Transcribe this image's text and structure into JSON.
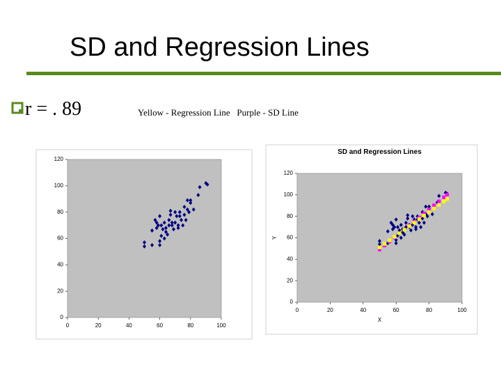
{
  "title": "SD and Regression Lines",
  "bullet": "r = . 89",
  "note": "Yellow - Regression Line   Purple - SD Line",
  "chart_data": [
    {
      "type": "scatter",
      "xlim": [
        0,
        100
      ],
      "xticks": [
        0,
        20,
        40,
        60,
        80,
        100
      ],
      "ylim": [
        0,
        120
      ],
      "yticks": [
        0,
        20,
        40,
        60,
        80,
        100,
        120
      ],
      "series": [
        {
          "color": "#000080",
          "marker": "diamond",
          "x": [
            50,
            50,
            55,
            55,
            58,
            58,
            59,
            60,
            60,
            60,
            61,
            61,
            62,
            63,
            64,
            64,
            65,
            66,
            66,
            67,
            67,
            68,
            68,
            69,
            70,
            70,
            71,
            72,
            72,
            73,
            73,
            74,
            75,
            76,
            76,
            77,
            78,
            78,
            79,
            80,
            80,
            82,
            85,
            86,
            90,
            91,
            57,
            63
          ],
          "values": [
            57,
            54,
            66,
            55,
            68,
            72,
            70,
            55,
            58,
            77,
            62,
            70,
            67,
            72,
            65,
            68,
            63,
            70,
            74,
            78,
            81,
            70,
            72,
            67,
            80,
            72,
            77,
            68,
            70,
            77,
            80,
            74,
            70,
            84,
            78,
            74,
            89,
            82,
            80,
            87,
            89,
            82,
            93,
            99,
            102,
            101,
            74,
            60
          ]
        }
      ]
    },
    {
      "type": "scatter",
      "title": "SD and Regression Lines",
      "xlabel": "X",
      "ylabel": "Y",
      "xlim": [
        0,
        100
      ],
      "xticks": [
        0,
        20,
        40,
        60,
        80,
        100
      ],
      "ylim": [
        0,
        120
      ],
      "yticks": [
        0,
        20,
        40,
        60,
        80,
        100,
        120
      ],
      "series": [
        {
          "color": "#000080",
          "marker": "diamond",
          "x": [
            50,
            50,
            55,
            55,
            58,
            58,
            59,
            60,
            60,
            60,
            61,
            61,
            62,
            63,
            64,
            64,
            65,
            66,
            66,
            67,
            67,
            68,
            68,
            69,
            70,
            70,
            71,
            72,
            72,
            73,
            73,
            74,
            75,
            76,
            76,
            77,
            78,
            78,
            79,
            80,
            80,
            82,
            85,
            86,
            90,
            91,
            57,
            63
          ],
          "values": [
            57,
            54,
            66,
            55,
            68,
            72,
            70,
            55,
            58,
            77,
            62,
            70,
            67,
            72,
            65,
            68,
            63,
            70,
            74,
            78,
            81,
            70,
            72,
            67,
            80,
            72,
            77,
            68,
            70,
            77,
            80,
            74,
            70,
            84,
            78,
            74,
            89,
            82,
            80,
            87,
            89,
            82,
            93,
            99,
            102,
            101,
            74,
            60
          ]
        },
        {
          "color": "#ff00ff",
          "marker": "square",
          "x": [
            50,
            53,
            56,
            59,
            62,
            65,
            68,
            71,
            74,
            77,
            80,
            83,
            86,
            89,
            91
          ],
          "values": [
            49,
            52.75,
            56.5,
            60.25,
            64,
            67.75,
            71.5,
            75.25,
            79,
            82.75,
            86.5,
            90.25,
            94,
            97.75,
            100.25
          ]
        },
        {
          "color": "#ffff00",
          "marker": "square",
          "x": [
            50,
            53,
            56,
            59,
            62,
            65,
            68,
            71,
            74,
            77,
            80,
            83,
            86,
            89,
            91
          ],
          "values": [
            51,
            54.3,
            57.6,
            60.9,
            64.2,
            67.5,
            70.8,
            74.1,
            77.4,
            80.7,
            84,
            87.3,
            90.6,
            93.9,
            96.1
          ]
        }
      ]
    }
  ]
}
